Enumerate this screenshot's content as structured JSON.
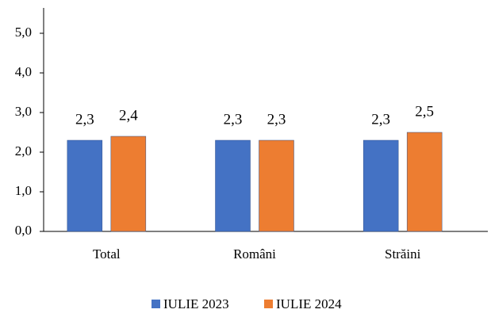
{
  "chart_data": {
    "type": "bar",
    "categories": [
      "Total",
      "Români",
      "Străini"
    ],
    "series": [
      {
        "name": "IULIE 2023",
        "color": "#4472c4",
        "values": [
          2.3,
          2.3,
          2.3
        ],
        "value_labels": [
          "2,3",
          "2,3",
          "2,3"
        ]
      },
      {
        "name": "IULIE 2024",
        "color": "#ed7d31",
        "values": [
          2.4,
          2.3,
          2.5
        ],
        "value_labels": [
          "2,4",
          "2,3",
          "2,5"
        ]
      }
    ],
    "ylim": [
      0,
      5.5
    ],
    "yticks": [
      {
        "value": 0,
        "label": "0,0"
      },
      {
        "value": 1,
        "label": "1,0"
      },
      {
        "value": 2,
        "label": "2,0"
      },
      {
        "value": 3,
        "label": "3,0"
      },
      {
        "value": 4,
        "label": "4,0"
      },
      {
        "value": 5,
        "label": "5,0"
      }
    ],
    "grid": false,
    "legend": "bottom"
  }
}
